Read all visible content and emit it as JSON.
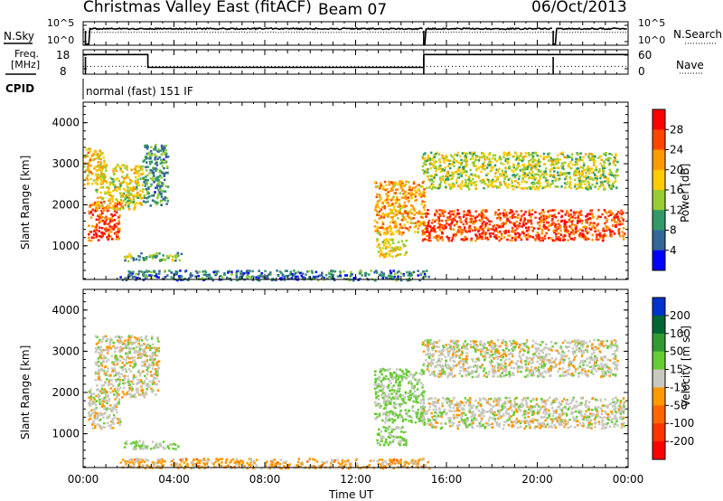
{
  "header": {
    "station": "Christmas Valley East (fitACF)",
    "beam": "Beam 07",
    "date": "06/Oct/2013"
  },
  "panels": {
    "noise": {
      "left_label": "N.Sky",
      "left_ticks": [
        "10^5",
        "10^0"
      ],
      "right_label": "N.Search",
      "right_ticks": [
        "10^5",
        "10^0"
      ]
    },
    "freq": {
      "left_label_1": "Freq.",
      "left_label_2": "[MHz]",
      "left_ticks": [
        "18",
        "8"
      ],
      "right_label": "Nave",
      "right_ticks": [
        "60",
        "0"
      ]
    },
    "cpid": {
      "label": "CPID",
      "value": "normal (fast) 151 IF"
    }
  },
  "colorbars": {
    "power": {
      "label": "Power [dB]",
      "ticks": [
        "28",
        "24",
        "20",
        "16",
        "12",
        "8",
        "4"
      ],
      "colors": [
        "#ff0000",
        "#ff4400",
        "#ff9900",
        "#ffcc00",
        "#99cc33",
        "#339966",
        "#336699",
        "#0000ff"
      ]
    },
    "velocity": {
      "label_main": "Velocity [m s",
      "label_sup": "-1",
      "label_end": "]",
      "ticks": [
        "200",
        "100",
        "50",
        "15",
        "-15",
        "-50",
        "-100",
        "-200"
      ],
      "colors": [
        "#0033cc",
        "#006633",
        "#339933",
        "#66cc33",
        "#c8c8c0",
        "#ff9900",
        "#ff6600",
        "#ff3300",
        "#ff0000"
      ]
    }
  },
  "chart_data": {
    "type": "heatmap",
    "title": "Christmas Valley East (fitACF) Beam 07 06/Oct/2013",
    "xlabel": "Time UT",
    "x_ticks": [
      "00:00",
      "04:00",
      "08:00",
      "12:00",
      "16:00",
      "20:00",
      "00:00"
    ],
    "xlim_hours": [
      0,
      24
    ],
    "panels": [
      {
        "name": "Power",
        "ylabel": "Slant Range [km]",
        "ylim": [
          180,
          4500
        ],
        "y_ticks": [
          "1000",
          "2000",
          "3000",
          "4000"
        ],
        "clim": [
          0,
          30
        ],
        "echo_regions": [
          {
            "t": [
              0.2,
              1.6
            ],
            "range": [
              1150,
              2100
            ],
            "level": 26
          },
          {
            "t": [
              0.5,
              2.6
            ],
            "range": [
              1900,
              3000
            ],
            "level": 16
          },
          {
            "t": [
              0.0,
              0.9
            ],
            "range": [
              2500,
              3400
            ],
            "level": 18
          },
          {
            "t": [
              2.6,
              3.7
            ],
            "range": [
              2000,
              3500
            ],
            "level": 8
          },
          {
            "t": [
              1.7,
              4.3
            ],
            "range": [
              650,
              850
            ],
            "level": 10
          },
          {
            "t": [
              1.6,
              15.2
            ],
            "range": [
              180,
              420
            ],
            "level": 6
          },
          {
            "t": [
              12.8,
              15.0
            ],
            "range": [
              1300,
              2600
            ],
            "level": 20
          },
          {
            "t": [
              12.9,
              14.2
            ],
            "range": [
              750,
              1200
            ],
            "level": 16
          },
          {
            "t": [
              14.9,
              23.8
            ],
            "range": [
              1150,
              1900
            ],
            "level": 26
          },
          {
            "t": [
              14.9,
              23.5
            ],
            "range": [
              2400,
              3300
            ],
            "level": 14
          }
        ]
      },
      {
        "name": "Velocity",
        "ylabel": "Slant Range [km]",
        "ylim": [
          180,
          4500
        ],
        "y_ticks": [
          "1000",
          "2000",
          "3000",
          "4000"
        ],
        "clim": [
          -200,
          200
        ],
        "echo_regions": [
          {
            "t": [
              0.2,
              1.6
            ],
            "range": [
              1150,
              2100
            ],
            "v": 0
          },
          {
            "t": [
              0.5,
              3.3
            ],
            "range": [
              1900,
              3400
            ],
            "v": 0
          },
          {
            "t": [
              1.7,
              4.3
            ],
            "range": [
              650,
              850
            ],
            "v": 30
          },
          {
            "t": [
              1.6,
              15.2
            ],
            "range": [
              180,
              420
            ],
            "v": -40
          },
          {
            "t": [
              12.8,
              15.0
            ],
            "range": [
              1300,
              2600
            ],
            "v": 30
          },
          {
            "t": [
              12.9,
              14.2
            ],
            "range": [
              750,
              1200
            ],
            "v": 30
          },
          {
            "t": [
              14.9,
              23.8
            ],
            "range": [
              1150,
              1900
            ],
            "v": 0
          },
          {
            "t": [
              14.9,
              23.5
            ],
            "range": [
              2400,
              3300
            ],
            "v": 0
          }
        ]
      }
    ],
    "noise_series": {
      "sky_level": 0.7,
      "search_level": 0.55,
      "gaps_hours": [
        [
          0.1,
          0.25
        ],
        [
          15.0,
          15.1
        ],
        [
          20.7,
          20.85
        ]
      ]
    },
    "freq_series": {
      "steps": [
        [
          0,
          2.85,
          17.8
        ],
        [
          2.85,
          15.0,
          9.5
        ],
        [
          15.0,
          24,
          17.8
        ]
      ],
      "nave_level": 0.32,
      "gaps_hours": [
        [
          0.1,
          0.25
        ],
        [
          15.0,
          15.1
        ],
        [
          20.7,
          20.85
        ]
      ]
    }
  }
}
